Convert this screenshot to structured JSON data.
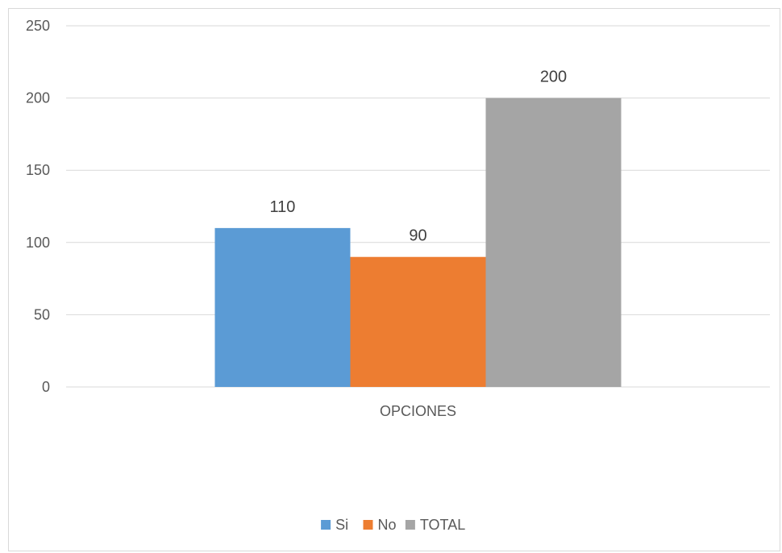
{
  "chart_data": {
    "type": "bar",
    "categories": [
      "OPCIONES"
    ],
    "series": [
      {
        "name": "Si",
        "values": [
          110
        ],
        "color": "#5b9bd5"
      },
      {
        "name": "No",
        "values": [
          90
        ],
        "color": "#ed7d31"
      },
      {
        "name": "TOTAL",
        "values": [
          200
        ],
        "color": "#a5a5a5"
      }
    ],
    "ylim": [
      0,
      250
    ],
    "yticks": [
      0,
      50,
      100,
      150,
      200,
      250
    ],
    "grid": true,
    "legend_position": "bottom",
    "data_labels": true,
    "gridline_color": "#d9d9d9",
    "tick_label_color": "#595959"
  }
}
